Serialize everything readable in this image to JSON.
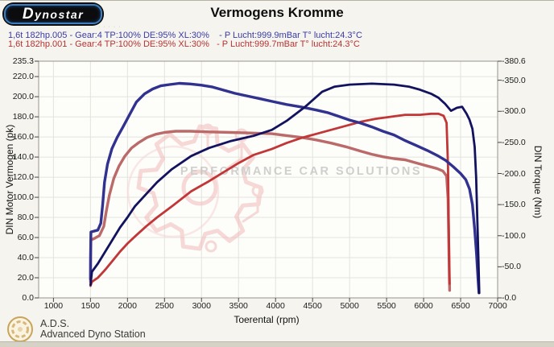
{
  "header": {
    "logo_text": "Dynostar",
    "logo_subtext": "· · · · ·",
    "title": "Vermogens Kromme"
  },
  "legend": {
    "runs": [
      {
        "text": "1,6t 182hp.005 - Gear:4 TP:100% DE:95% XL:30%    - P Lucht:999.9mBar T° lucht:24.3°C",
        "color": "#3a3aa8"
      },
      {
        "text": "1,6t 182hp.001 - Gear:4 TP:100% DE:95% XL:30%   - P Lucht:999.7mBar T° lucht:24.3°C",
        "color": "#b53333"
      }
    ]
  },
  "watermark": {
    "text": "PERFORMANCE CAR SOLUTIONS",
    "text_color": "#ababab",
    "gear_color": "#f2baba"
  },
  "footer": {
    "ads_title": "A.D.S.",
    "ads_subtitle": "Advanced Dyno Station"
  },
  "chart_data": {
    "type": "line",
    "title": "Vermogens Kromme",
    "xlabel": "Toerental (rpm)",
    "ylabel_left": "DIN Motor Vermogen (pk)",
    "ylabel_right": "DIN Torque (Nm)",
    "xlim": [
      800,
      7000
    ],
    "ylim_left": [
      0,
      235.3
    ],
    "ylim_right": [
      0,
      380.6
    ],
    "grid": true,
    "x_ticks": [
      1000,
      1500,
      2000,
      2500,
      3000,
      3500,
      4000,
      4500,
      5000,
      5500,
      6000,
      6500,
      7000
    ],
    "y_ticks_left": [
      0,
      20,
      40,
      60,
      80,
      100,
      120,
      140,
      160,
      180,
      200,
      220,
      235.3
    ],
    "y_ticks_right": [
      0,
      50,
      100,
      150,
      200,
      250,
      300,
      350,
      380.6
    ],
    "series": [
      {
        "name": "run-001-torque-Nm",
        "run": "1,6t 182hp.001",
        "axis": "right",
        "color": "#bb6a6a",
        "width": 3.4,
        "points": [
          [
            1500,
            26
          ],
          [
            1502,
            55
          ],
          [
            1506,
            93
          ],
          [
            1560,
            96
          ],
          [
            1620,
            100
          ],
          [
            1680,
            115
          ],
          [
            1715,
            140
          ],
          [
            1755,
            165
          ],
          [
            1815,
            192
          ],
          [
            1885,
            212
          ],
          [
            1965,
            228
          ],
          [
            2055,
            241
          ],
          [
            2155,
            250
          ],
          [
            2265,
            258
          ],
          [
            2380,
            263
          ],
          [
            2500,
            266
          ],
          [
            2650,
            268
          ],
          [
            2850,
            268
          ],
          [
            3100,
            267
          ],
          [
            3400,
            266
          ],
          [
            3700,
            265
          ],
          [
            3950,
            264
          ],
          [
            4150,
            261
          ],
          [
            4350,
            258
          ],
          [
            4550,
            254
          ],
          [
            4750,
            249
          ],
          [
            4950,
            243
          ],
          [
            5150,
            236
          ],
          [
            5300,
            231
          ],
          [
            5450,
            227
          ],
          [
            5600,
            224
          ],
          [
            5750,
            222
          ],
          [
            5900,
            217
          ],
          [
            6050,
            212
          ],
          [
            6180,
            208
          ],
          [
            6260,
            204
          ],
          [
            6310,
            196
          ],
          [
            6330,
            160
          ],
          [
            6340,
            90
          ],
          [
            6348,
            30
          ],
          [
            6352,
            12
          ]
        ]
      },
      {
        "name": "run-001-power-pk",
        "run": "1,6t 182hp.001",
        "axis": "left",
        "color": "#c13636",
        "width": 2.8,
        "points": [
          [
            1500,
            12
          ],
          [
            1520,
            16
          ],
          [
            1600,
            20
          ],
          [
            1700,
            28
          ],
          [
            1800,
            37
          ],
          [
            1900,
            46
          ],
          [
            2000,
            54
          ],
          [
            2100,
            61
          ],
          [
            2250,
            71
          ],
          [
            2400,
            80
          ],
          [
            2600,
            91
          ],
          [
            2860,
            106
          ],
          [
            3100,
            116
          ],
          [
            3300,
            125
          ],
          [
            3500,
            134
          ],
          [
            3700,
            142
          ],
          [
            3950,
            148
          ],
          [
            4150,
            154
          ],
          [
            4350,
            159
          ],
          [
            4550,
            163
          ],
          [
            4750,
            167
          ],
          [
            4950,
            171
          ],
          [
            5150,
            175
          ],
          [
            5350,
            178
          ],
          [
            5550,
            180
          ],
          [
            5750,
            182
          ],
          [
            5950,
            182
          ],
          [
            6100,
            183
          ],
          [
            6200,
            183
          ],
          [
            6270,
            181
          ],
          [
            6310,
            174
          ],
          [
            6330,
            130
          ],
          [
            6340,
            70
          ],
          [
            6347,
            28
          ],
          [
            6351,
            14
          ]
        ]
      },
      {
        "name": "run-005-torque-Nm",
        "run": "1,6t 182hp.005",
        "axis": "right",
        "color": "#31318f",
        "width": 3.4,
        "points": [
          [
            1500,
            30
          ],
          [
            1502,
            68
          ],
          [
            1506,
            106
          ],
          [
            1600,
            109
          ],
          [
            1640,
            120
          ],
          [
            1665,
            150
          ],
          [
            1690,
            186
          ],
          [
            1730,
            215
          ],
          [
            1790,
            240
          ],
          [
            1860,
            258
          ],
          [
            1940,
            275
          ],
          [
            2030,
            295
          ],
          [
            2120,
            315
          ],
          [
            2230,
            328
          ],
          [
            2340,
            336
          ],
          [
            2450,
            341
          ],
          [
            2570,
            343
          ],
          [
            2700,
            345
          ],
          [
            2850,
            344
          ],
          [
            3000,
            342
          ],
          [
            3150,
            339
          ],
          [
            3300,
            334
          ],
          [
            3450,
            329
          ],
          [
            3600,
            325
          ],
          [
            3800,
            320
          ],
          [
            3950,
            316
          ],
          [
            4150,
            311
          ],
          [
            4350,
            307
          ],
          [
            4550,
            302
          ],
          [
            4700,
            298
          ],
          [
            4850,
            292
          ],
          [
            5000,
            286
          ],
          [
            5150,
            281
          ],
          [
            5300,
            275
          ],
          [
            5450,
            268
          ],
          [
            5600,
            262
          ],
          [
            5750,
            253
          ],
          [
            5900,
            245
          ],
          [
            6050,
            237
          ],
          [
            6200,
            228
          ],
          [
            6300,
            221
          ],
          [
            6400,
            211
          ],
          [
            6500,
            200
          ],
          [
            6570,
            190
          ],
          [
            6620,
            175
          ],
          [
            6660,
            150
          ],
          [
            6690,
            110
          ],
          [
            6715,
            70
          ],
          [
            6738,
            25
          ],
          [
            6748,
            8
          ]
        ]
      },
      {
        "name": "run-005-power-pk",
        "run": "1,6t 182hp.005",
        "axis": "left",
        "color": "#12125f",
        "width": 2.8,
        "points": [
          [
            1500,
            13
          ],
          [
            1520,
            26
          ],
          [
            1600,
            34
          ],
          [
            1700,
            46
          ],
          [
            1800,
            58
          ],
          [
            1900,
            70
          ],
          [
            2000,
            80
          ],
          [
            2100,
            91
          ],
          [
            2250,
            103
          ],
          [
            2400,
            115
          ],
          [
            2600,
            128
          ],
          [
            2860,
            141
          ],
          [
            3100,
            149
          ],
          [
            3400,
            156
          ],
          [
            3700,
            161
          ],
          [
            3950,
            167
          ],
          [
            4150,
            176
          ],
          [
            4400,
            190
          ],
          [
            4630,
            205
          ],
          [
            4800,
            210
          ],
          [
            5000,
            212
          ],
          [
            5300,
            213
          ],
          [
            5600,
            212
          ],
          [
            5800,
            210
          ],
          [
            5950,
            207
          ],
          [
            6100,
            203
          ],
          [
            6200,
            199
          ],
          [
            6290,
            193
          ],
          [
            6370,
            186
          ],
          [
            6450,
            189
          ],
          [
            6520,
            190
          ],
          [
            6580,
            183
          ],
          [
            6620,
            177
          ],
          [
            6660,
            168
          ],
          [
            6690,
            150
          ],
          [
            6710,
            120
          ],
          [
            6725,
            80
          ],
          [
            6740,
            40
          ],
          [
            6752,
            5
          ]
        ]
      }
    ]
  }
}
